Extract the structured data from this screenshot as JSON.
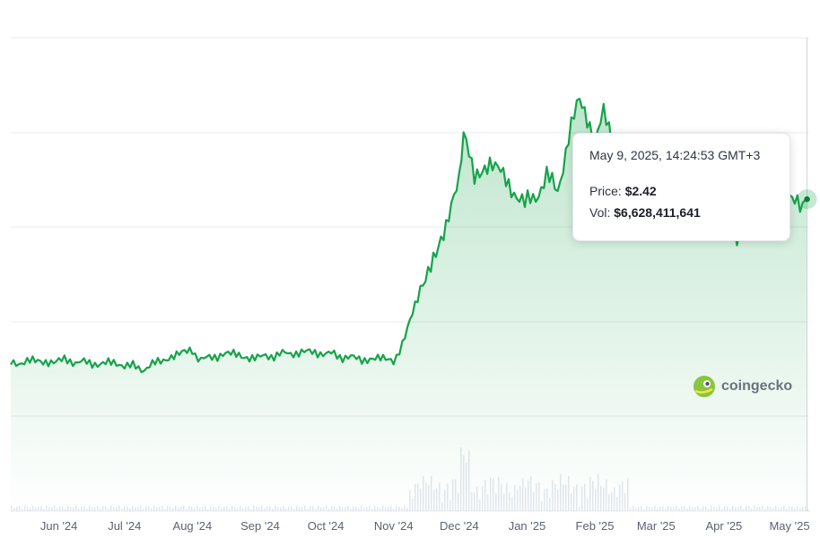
{
  "chart_data": {
    "type": "line",
    "title": "",
    "xlabel": "",
    "ylabel": "",
    "x_ticks": [
      "Jun '24",
      "Jul '24",
      "Aug '24",
      "Sep '24",
      "Oct '24",
      "Nov '24",
      "Dec '24",
      "Jan '25",
      "Feb '25",
      "Mar '25",
      "Apr '25",
      "May '25"
    ],
    "ylim": [
      0,
      3.2
    ],
    "grid": true,
    "legend": "none",
    "series": [
      {
        "color": "#16a34a",
        "x": [
          "2024-05-10",
          "2024-05-20",
          "2024-06-01",
          "2024-06-15",
          "2024-07-01",
          "2024-07-10",
          "2024-07-20",
          "2024-08-01",
          "2024-08-05",
          "2024-08-15",
          "2024-09-01",
          "2024-09-15",
          "2024-10-01",
          "2024-10-10",
          "2024-10-20",
          "2024-11-01",
          "2024-11-05",
          "2024-11-12",
          "2024-11-18",
          "2024-11-25",
          "2024-12-01",
          "2024-12-03",
          "2024-12-08",
          "2024-12-15",
          "2024-12-31",
          "2025-01-05",
          "2025-01-10",
          "2025-01-15",
          "2025-01-20",
          "2025-01-25",
          "2025-02-01",
          "2025-02-05",
          "2025-02-10",
          "2025-03-01",
          "2025-03-20",
          "2025-04-07",
          "2025-04-20",
          "2025-05-01",
          "2025-05-07",
          "2025-05-09"
        ],
        "y": [
          1.15,
          1.16,
          1.17,
          1.15,
          1.14,
          1.1,
          1.19,
          1.24,
          1.17,
          1.22,
          1.19,
          1.23,
          1.23,
          1.19,
          1.18,
          1.17,
          1.28,
          1.65,
          1.95,
          2.2,
          2.55,
          2.9,
          2.62,
          2.72,
          2.38,
          2.44,
          2.6,
          2.48,
          2.9,
          3.2,
          2.9,
          3.08,
          2.85,
          2.45,
          2.35,
          2.15,
          2.45,
          2.4,
          2.35,
          2.42
        ]
      }
    ],
    "volume_bars": "faint background volume histogram, peak near Dec '24",
    "tooltip": {
      "date": "May 9, 2025, 14:24:53 GMT+3",
      "price_label": "Price:",
      "price": "$2.42",
      "vol_label": "Vol:",
      "volume": "$6,628,411,641"
    }
  },
  "watermark": {
    "text": "coingecko"
  },
  "colors": {
    "line": "#16a34a",
    "area_top": "#16a34a",
    "grid": "#e8ebee",
    "tooltip_border": "#e3e6ea"
  }
}
